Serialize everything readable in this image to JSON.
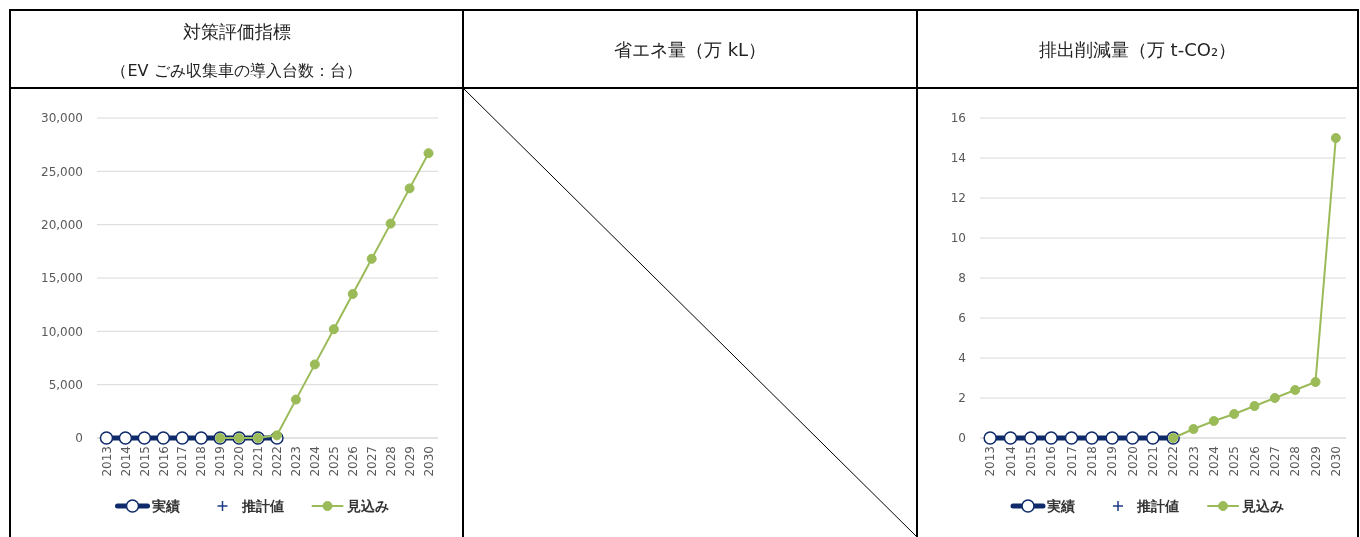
{
  "chart_data": [
    {
      "type": "line",
      "title": "対策評価指標",
      "subtitle": "（EV ごみ収集車の導入台数：台）",
      "categories": [
        "2013",
        "2014",
        "2015",
        "2016",
        "2017",
        "2018",
        "2019",
        "2020",
        "2021",
        "2022",
        "2023",
        "2024",
        "2025",
        "2026",
        "2027",
        "2028",
        "2029",
        "2030"
      ],
      "ylim": [
        0,
        30000
      ],
      "yticks": [
        0,
        {
          "value": 5000,
          "label": "5,000"
        },
        {
          "value": 10000,
          "label": "10,000"
        },
        {
          "value": 15000,
          "label": "15,000"
        },
        {
          "value": 20000,
          "label": "20,000"
        },
        {
          "value": 25000,
          "label": "25,000"
        },
        {
          "value": 30000,
          "label": "30,000"
        }
      ],
      "grid": "y",
      "legend": "bottom",
      "series": [
        {
          "name": "実績",
          "color": "#0e2a6b",
          "marker": "circle",
          "line_style": "solid",
          "values": [
            0,
            0,
            0,
            0,
            0,
            0,
            0,
            0,
            0,
            0,
            null,
            null,
            null,
            null,
            null,
            null,
            null,
            null
          ]
        },
        {
          "name": "推計値",
          "color": "#1f3c88",
          "marker": "cross",
          "line_style": "none",
          "values": [
            null,
            null,
            null,
            null,
            null,
            null,
            null,
            null,
            null,
            null,
            null,
            null,
            null,
            null,
            null,
            null,
            null,
            null
          ]
        },
        {
          "name": "見込み",
          "color": "#9bbb59",
          "marker": "circle",
          "line_style": "solid",
          "values": [
            null,
            null,
            null,
            null,
            null,
            null,
            0,
            0,
            0,
            250,
            3600,
            6900,
            10200,
            13500,
            16800,
            20100,
            23400,
            26700
          ]
        }
      ]
    },
    {
      "type": "other",
      "title": "省エネ量（万 kL）"
    },
    {
      "type": "line",
      "title": "排出削減量（万 t-CO₂）",
      "categories": [
        "2013",
        "2014",
        "2015",
        "2016",
        "2017",
        "2018",
        "2019",
        "2020",
        "2021",
        "2022",
        "2023",
        "2024",
        "2025",
        "2026",
        "2027",
        "2028",
        "2029",
        "2030"
      ],
      "ylim": [
        0,
        16
      ],
      "yticks": [
        0,
        2,
        4,
        6,
        8,
        10,
        12,
        14,
        16
      ],
      "grid": "y",
      "legend": "bottom",
      "series": [
        {
          "name": "実績",
          "color": "#0e2a6b",
          "marker": "circle",
          "line_style": "solid",
          "values": [
            0,
            0,
            0,
            0,
            0,
            0,
            0,
            0,
            0,
            0,
            null,
            null,
            null,
            null,
            null,
            null,
            null,
            null
          ]
        },
        {
          "name": "推計値",
          "color": "#1f3c88",
          "marker": "cross",
          "line_style": "none",
          "values": [
            null,
            null,
            null,
            null,
            null,
            null,
            null,
            null,
            null,
            null,
            null,
            null,
            null,
            null,
            null,
            null,
            null,
            null
          ]
        },
        {
          "name": "見込み",
          "color": "#9bbb59",
          "marker": "circle",
          "line_style": "solid",
          "values": [
            null,
            null,
            null,
            null,
            null,
            null,
            null,
            null,
            null,
            0,
            0.45,
            0.85,
            1.2,
            1.6,
            2.0,
            2.4,
            2.8,
            15.0
          ]
        }
      ]
    }
  ]
}
